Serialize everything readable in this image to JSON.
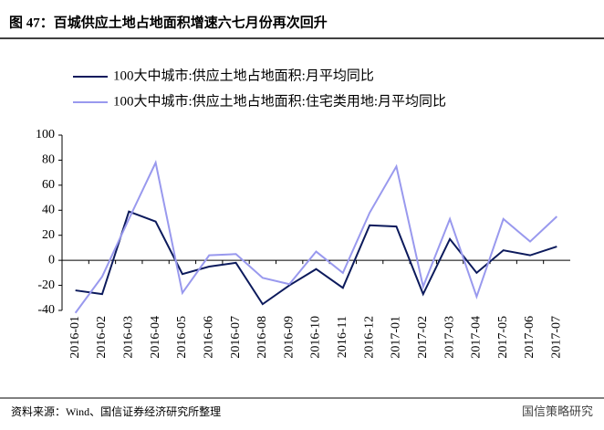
{
  "chart_data": {
    "type": "line",
    "title": "图 47：百城供应土地占地面积增速六七月份再次回升",
    "categories": [
      "2016-01",
      "2016-02",
      "2016-03",
      "2016-04",
      "2016-05",
      "2016-06",
      "2016-07",
      "2016-08",
      "2016-09",
      "2016-10",
      "2016-11",
      "2016-12",
      "2017-01",
      "2017-02",
      "2017-03",
      "2017-04",
      "2017-05",
      "2017-06",
      "2017-07"
    ],
    "series": [
      {
        "name": "100大中城市:供应土地占地面积:月平均同比",
        "color": "#0c1a5c",
        "values": [
          -24,
          -27,
          39,
          31,
          -11,
          -5,
          -2,
          -35,
          -20,
          -7,
          -22,
          28,
          27,
          -27,
          17,
          -10,
          8,
          4,
          11
        ]
      },
      {
        "name": "100大中城市:供应土地占地面积:住宅类用地:月平均同比",
        "color": "#9999ee",
        "values": [
          -42,
          -13,
          33,
          78,
          -26,
          4,
          5,
          -14,
          -19,
          7,
          -10,
          38,
          75,
          -21,
          33,
          -29,
          33,
          15,
          35
        ]
      }
    ],
    "ylim": [
      -40,
      100
    ],
    "yticks": [
      -40,
      -20,
      0,
      20,
      40,
      60,
      80,
      100
    ],
    "grid": false,
    "source": "资料来源：Wind、国信证券经济研究所整理",
    "watermark": "国信策略研究"
  }
}
